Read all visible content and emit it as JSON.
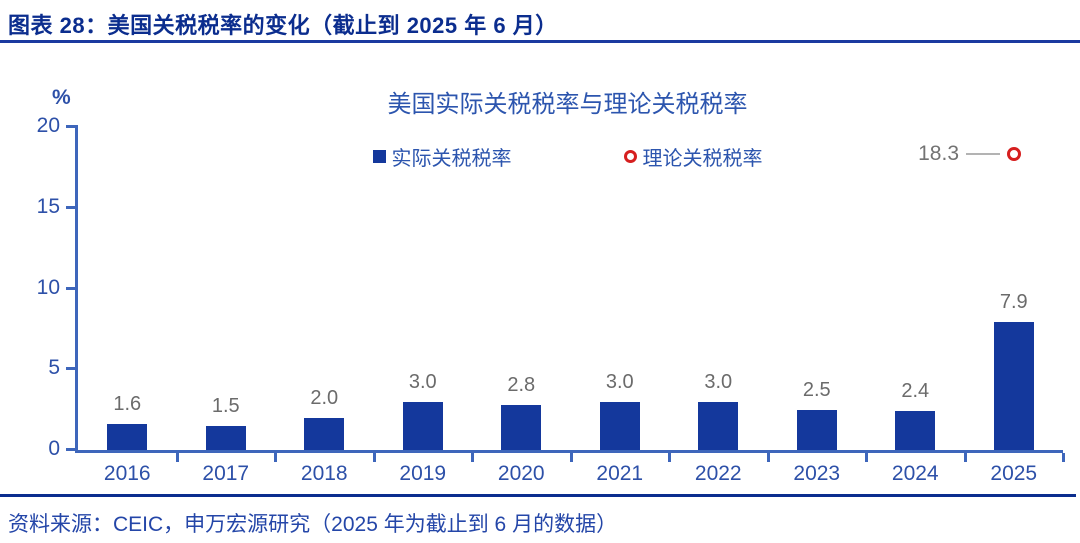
{
  "header": {
    "title": "图表 28：美国关税税率的变化（截止到 2025 年 6 月）"
  },
  "chart": {
    "percent_label": "%",
    "title": "美国实际关税税率与理论关税税率",
    "legend": [
      {
        "label": "实际关税税率",
        "marker": "blue-square"
      },
      {
        "label": "理论关税税率",
        "marker": "red-ring"
      }
    ],
    "annotation_label": "18.3"
  },
  "chart_data": {
    "type": "bar",
    "title": "美国实际关税税率与理论关税税率",
    "categories": [
      "2016",
      "2017",
      "2018",
      "2019",
      "2020",
      "2021",
      "2022",
      "2023",
      "2024",
      "2025"
    ],
    "series": [
      {
        "name": "实际关税税率",
        "type": "bar",
        "values": [
          1.6,
          1.5,
          2.0,
          3.0,
          2.8,
          3.0,
          3.0,
          2.5,
          2.4,
          7.9
        ]
      },
      {
        "name": "理论关税税率",
        "type": "scatter",
        "values": [
          null,
          null,
          null,
          null,
          null,
          null,
          null,
          null,
          null,
          18.3
        ]
      }
    ],
    "ylabel": "%",
    "ylim": [
      0,
      20
    ],
    "yticks": [
      0,
      5,
      10,
      15,
      20
    ],
    "grid": false,
    "legend_position": "top-center",
    "bar_color": "#14389c",
    "scatter_marker_color": "#d61f1f",
    "value_label_color": "#6b6b6b"
  },
  "footer": {
    "source": "资料来源：CEIC，申万宏源研究（2025 年为截止到 6 月的数据）"
  }
}
